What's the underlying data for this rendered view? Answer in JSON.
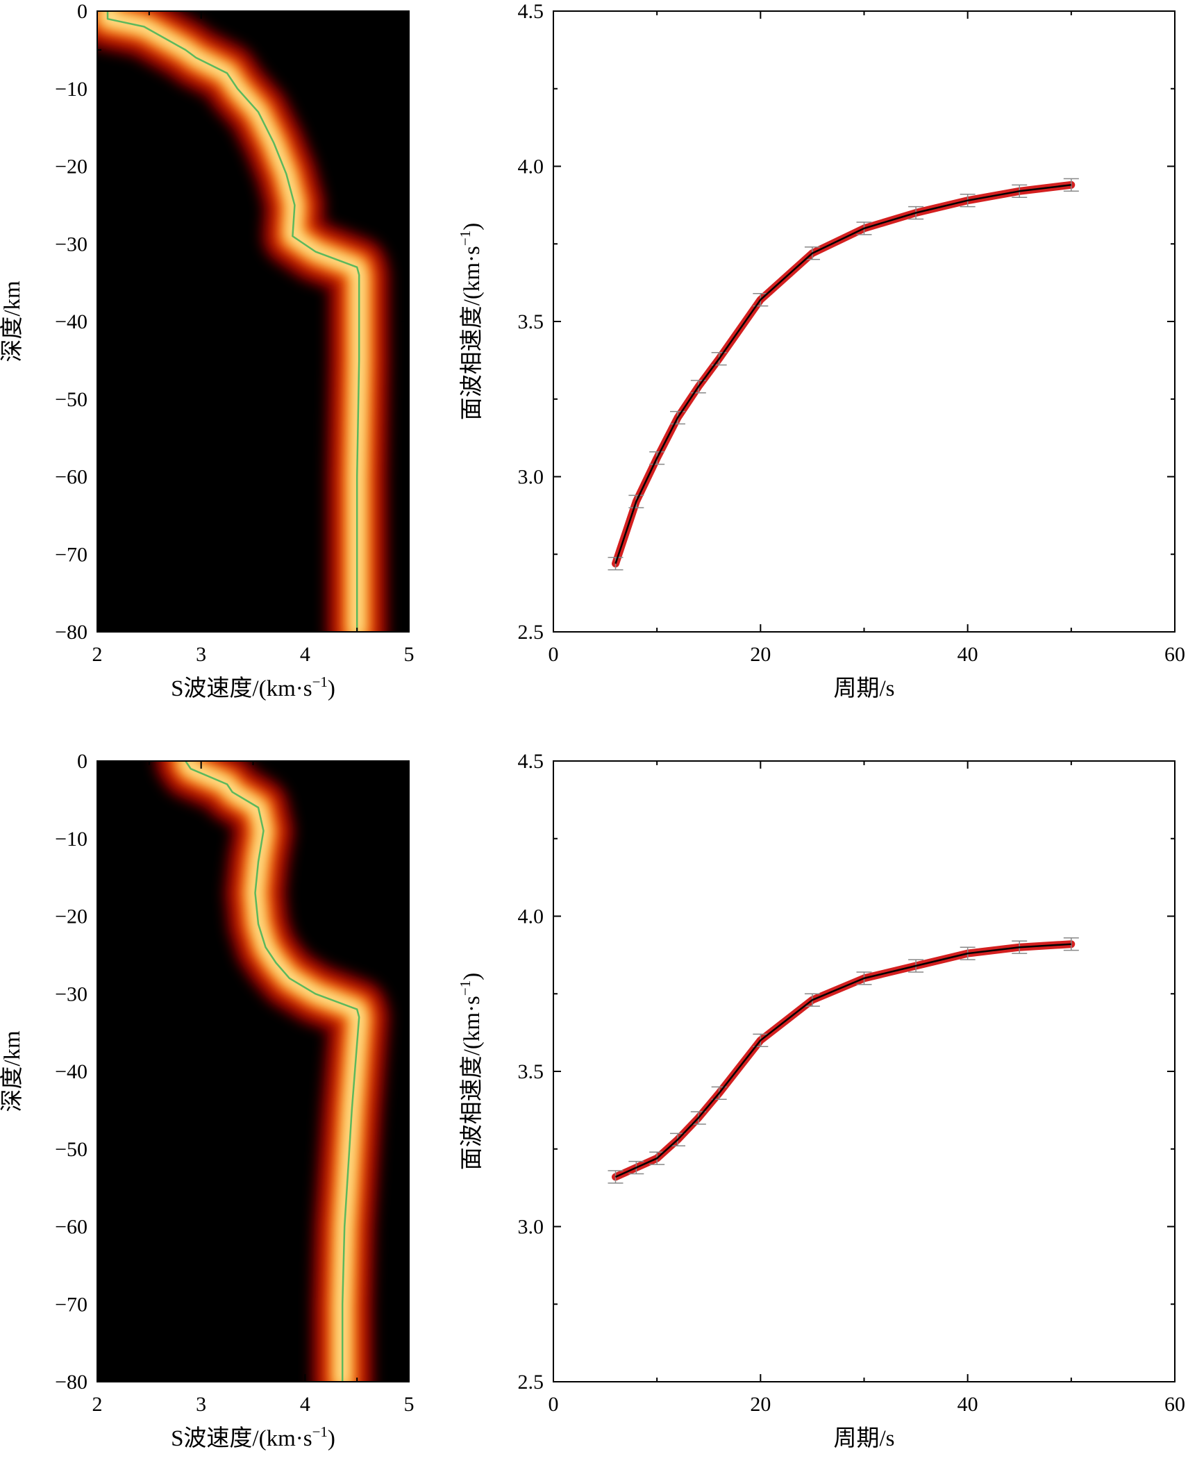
{
  "chart_data": [
    {
      "type": "heatmap",
      "panel": "top-left",
      "xlabel": "S波速度/(km·s",
      "xlabel_sup": "−1",
      "xlabel_end": ")",
      "ylabel": "深度/km",
      "xlim": [
        2,
        5
      ],
      "ylim": [
        -80,
        0
      ],
      "xticks": [
        "2",
        "3",
        "4",
        "5"
      ],
      "yticks": [
        "0",
        "−10",
        "−20",
        "−30",
        "−40",
        "−50",
        "−60",
        "−70",
        "−80"
      ],
      "background": "#000000",
      "line_color": "#5cb85c",
      "model": {
        "velocity": [
          2.1,
          2.1,
          2.45,
          2.85,
          2.95,
          3.25,
          3.35,
          3.55,
          3.7,
          3.82,
          3.9,
          3.88,
          4.1,
          4.5,
          4.52,
          4.52,
          4.5,
          4.5
        ],
        "depth": [
          0,
          -1,
          -2,
          -5,
          -6,
          -8,
          -10,
          -13,
          -17,
          -21,
          -25,
          -29,
          -31,
          -33,
          -34,
          -45,
          -60,
          -80
        ]
      }
    },
    {
      "type": "line",
      "panel": "top-right",
      "xlabel": "周期/s",
      "ylabel": "面波相速度/(km·s",
      "ylabel_sup": "−1",
      "ylabel_end": ")",
      "xlim": [
        0,
        60
      ],
      "ylim": [
        2.5,
        4.5
      ],
      "xticks": [
        "0",
        "20",
        "40",
        "60"
      ],
      "yticks": [
        "2.5",
        "3.0",
        "3.5",
        "4.0",
        "4.5"
      ],
      "band_color": "#d42020",
      "line_color": "#000000",
      "errorbar_color": "#888888",
      "x": [
        6,
        8,
        10,
        12,
        14,
        16,
        20,
        25,
        30,
        35,
        40,
        45,
        50
      ],
      "y": [
        2.72,
        2.92,
        3.06,
        3.19,
        3.29,
        3.38,
        3.57,
        3.72,
        3.8,
        3.85,
        3.89,
        3.92,
        3.94
      ]
    },
    {
      "type": "heatmap",
      "panel": "bottom-left",
      "xlabel": "S波速度/(km·s",
      "xlabel_sup": "−1",
      "xlabel_end": ")",
      "ylabel": "深度/km",
      "xlim": [
        2,
        5
      ],
      "ylim": [
        -80,
        0
      ],
      "xticks": [
        "2",
        "3",
        "4",
        "5"
      ],
      "yticks": [
        "0",
        "−10",
        "−20",
        "−30",
        "−40",
        "−50",
        "−60",
        "−70",
        "−80"
      ],
      "background": "#000000",
      "line_color": "#5cb85c",
      "model": {
        "velocity": [
          2.85,
          2.9,
          3.25,
          3.3,
          3.55,
          3.6,
          3.55,
          3.52,
          3.55,
          3.62,
          3.72,
          3.85,
          4.1,
          4.5,
          4.52,
          4.45,
          4.38,
          4.36,
          4.36
        ],
        "depth": [
          0,
          -1,
          -3,
          -4,
          -6,
          -9,
          -13,
          -17,
          -21,
          -24,
          -26,
          -28,
          -30,
          -32,
          -33,
          -45,
          -60,
          -70,
          -80
        ]
      }
    },
    {
      "type": "line",
      "panel": "bottom-right",
      "xlabel": "周期/s",
      "ylabel": "面波相速度/(km·s",
      "ylabel_sup": "−1",
      "ylabel_end": ")",
      "xlim": [
        0,
        60
      ],
      "ylim": [
        2.5,
        4.5
      ],
      "xticks": [
        "0",
        "20",
        "40",
        "60"
      ],
      "yticks": [
        "2.5",
        "3.0",
        "3.5",
        "4.0",
        "4.5"
      ],
      "band_color": "#d42020",
      "line_color": "#000000",
      "errorbar_color": "#888888",
      "x": [
        6,
        8,
        10,
        12,
        14,
        16,
        20,
        25,
        30,
        35,
        40,
        45,
        50
      ],
      "y": [
        3.16,
        3.19,
        3.22,
        3.28,
        3.35,
        3.43,
        3.6,
        3.73,
        3.8,
        3.84,
        3.88,
        3.9,
        3.91
      ]
    }
  ]
}
